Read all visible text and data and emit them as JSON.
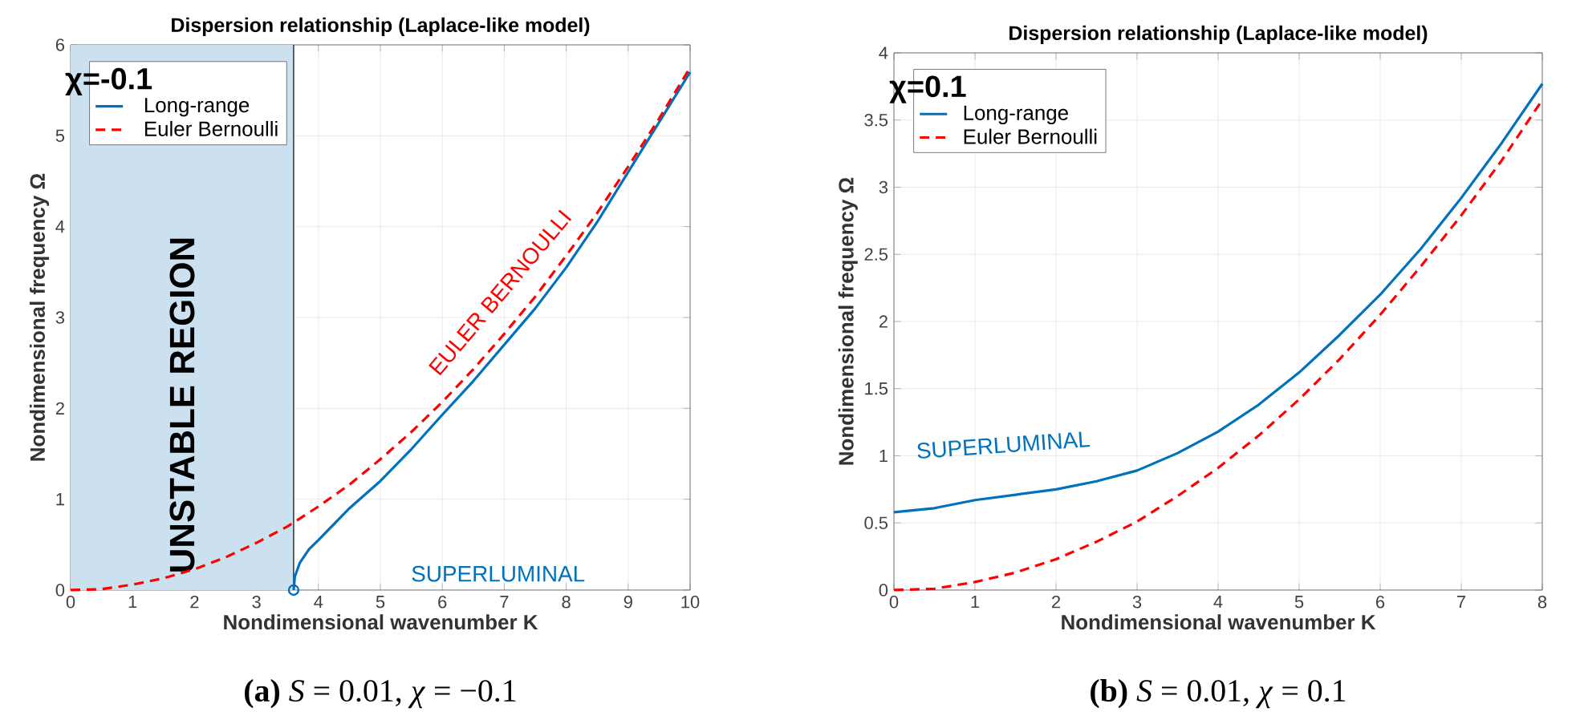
{
  "chart_data": [
    {
      "type": "line",
      "title": "Dispersion relationship (Laplace-like model)",
      "xlabel": "Nondimensional wavenumber K",
      "ylabel": "Nondimensional frequency Ω",
      "legend_title": "χ=-0.1",
      "legend": "top left",
      "grid": true,
      "line_style": "solid",
      "marker": "none",
      "xlim": [
        0,
        10
      ],
      "ylim": [
        0,
        6
      ],
      "xticks": [
        0,
        1,
        2,
        3,
        4,
        5,
        6,
        7,
        8,
        9,
        10
      ],
      "yticks": [
        0,
        1,
        2,
        3,
        4,
        5,
        6
      ],
      "x": [
        0,
        0.5,
        1,
        1.5,
        2,
        2.5,
        3,
        3.5,
        4,
        4.5,
        5,
        5.5,
        6,
        6.5,
        7,
        7.5,
        8,
        8.5,
        9,
        9.5,
        10
      ],
      "series": [
        {
          "name": "Long-range",
          "color": "#0072bd",
          "x": [
            3.6,
            3.62,
            3.7,
            3.85,
            4,
            4.5,
            5,
            5.5,
            6,
            6.5,
            7,
            7.5,
            8,
            8.5,
            9,
            9.5,
            10
          ],
          "values": [
            0,
            0.15,
            0.3,
            0.45,
            0.55,
            0.9,
            1.2,
            1.55,
            1.93,
            2.3,
            2.7,
            3.1,
            3.55,
            4.05,
            4.6,
            5.15,
            5.7
          ]
        },
        {
          "name": "Euler Bernoulli",
          "color": "#ff0000",
          "line_style": "dashed",
          "values": [
            0,
            0.01,
            0.06,
            0.13,
            0.23,
            0.36,
            0.52,
            0.7,
            0.92,
            1.16,
            1.44,
            1.74,
            2.07,
            2.43,
            2.82,
            3.23,
            3.68,
            4.15,
            4.66,
            5.19,
            5.75
          ]
        },
        {
          "type": "scatter",
          "color": "#0072bd",
          "marker": "circle",
          "x": [
            3.6
          ],
          "values": [
            0
          ]
        }
      ],
      "bands": [
        {
          "axis": "x",
          "from": 0,
          "to": 3.6,
          "label": "UNSTABLE REGION",
          "color": "#cce1f0"
        }
      ],
      "ref_lines": [
        {
          "axis": "x",
          "value": 3.6,
          "color": "#000000"
        }
      ],
      "annotations": [
        "EULER BERNOULLI",
        "SUPERLUMINAL",
        "**(a)** *S* = 0.01, *χ* = −0.1"
      ]
    },
    {
      "type": "line",
      "title": "Dispersion relationship (Laplace-like model)",
      "xlabel": "Nondimensional wavenumber K",
      "ylabel": "Nondimensional frequency Ω",
      "legend_title": "χ=0.1",
      "legend": "top left",
      "grid": true,
      "line_style": "solid",
      "marker": "none",
      "xlim": [
        0,
        8
      ],
      "ylim": [
        0,
        4
      ],
      "xticks": [
        0,
        1,
        2,
        3,
        4,
        5,
        6,
        7,
        8
      ],
      "yticks": [
        0,
        0.5,
        1,
        1.5,
        2,
        2.5,
        3,
        3.5,
        4
      ],
      "x": [
        0,
        0.5,
        1,
        1.5,
        2,
        2.5,
        3,
        3.5,
        4,
        4.5,
        5,
        5.5,
        6,
        6.5,
        7,
        7.5,
        8
      ],
      "series": [
        {
          "name": "Long-range",
          "color": "#0072bd",
          "values": [
            0.58,
            0.61,
            0.67,
            0.71,
            0.75,
            0.81,
            0.89,
            1.02,
            1.18,
            1.38,
            1.62,
            1.9,
            2.2,
            2.54,
            2.92,
            3.33,
            3.77
          ]
        },
        {
          "name": "Euler Bernoulli",
          "color": "#ff0000",
          "line_style": "dashed",
          "values": [
            0,
            0.01,
            0.06,
            0.13,
            0.23,
            0.36,
            0.51,
            0.7,
            0.91,
            1.15,
            1.42,
            1.72,
            2.05,
            2.41,
            2.79,
            3.2,
            3.65
          ]
        }
      ],
      "annotations": [
        "SUPERLUMINAL",
        "**(b)** *S* = 0.01, *χ* = 0.1"
      ]
    }
  ]
}
